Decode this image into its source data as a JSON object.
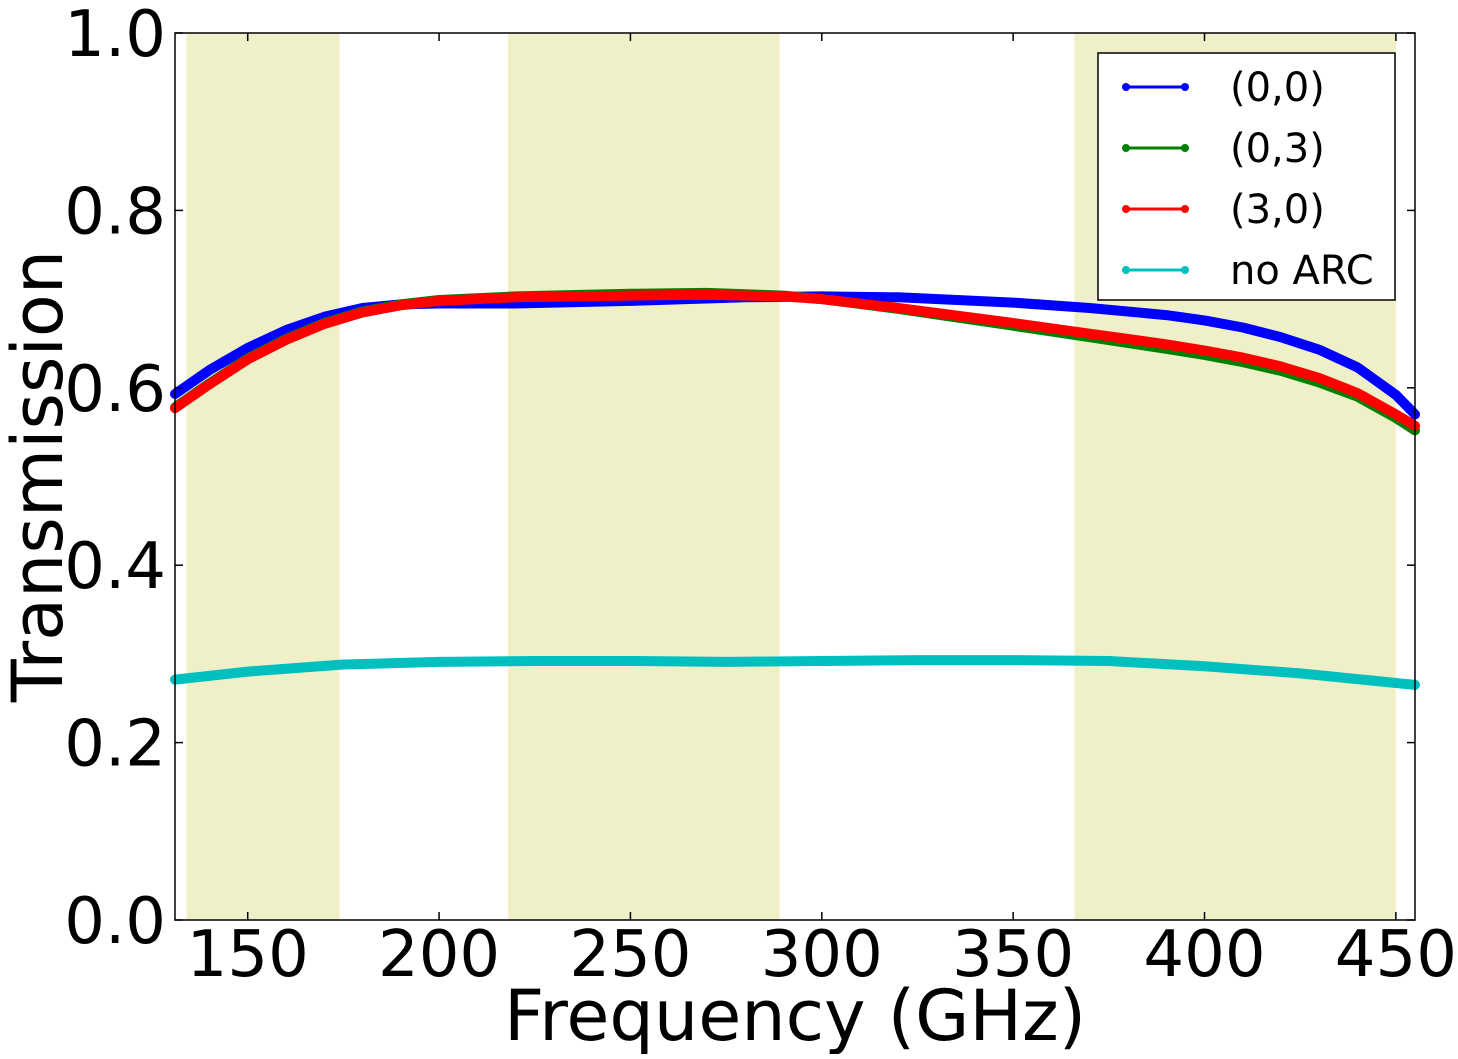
{
  "chart_data": {
    "type": "line",
    "xlabel": "Frequency (GHz)",
    "ylabel": "Transmission",
    "xlim": [
      131,
      455
    ],
    "ylim": [
      0.0,
      1.0
    ],
    "x_ticks": [
      150,
      200,
      250,
      300,
      350,
      400,
      450
    ],
    "y_ticks": [
      0.0,
      0.2,
      0.4,
      0.6,
      0.8,
      1.0
    ],
    "x_tick_labels": [
      "150",
      "200",
      "250",
      "300",
      "350",
      "400",
      "450"
    ],
    "y_tick_labels": [
      "0.0",
      "0.2",
      "0.4",
      "0.6",
      "0.8",
      "1.0"
    ],
    "grid": false,
    "legend_position": "top-right",
    "shaded_bands": [
      {
        "x_start": 134,
        "x_end": 174,
        "color": "#f0f0c8"
      },
      {
        "x_start": 218,
        "x_end": 289,
        "color": "#f0f0c8"
      },
      {
        "x_start": 366,
        "x_end": 450,
        "color": "#f0f0c8"
      }
    ],
    "series": [
      {
        "name": "(0,0)",
        "color": "#0000ff",
        "x": [
          131,
          140,
          150,
          160,
          170,
          180,
          190,
          200,
          220,
          250,
          280,
          300,
          320,
          350,
          370,
          390,
          400,
          410,
          420,
          430,
          440,
          450,
          455
        ],
        "values": [
          0.593,
          0.62,
          0.645,
          0.665,
          0.68,
          0.69,
          0.694,
          0.695,
          0.695,
          0.698,
          0.702,
          0.703,
          0.702,
          0.696,
          0.69,
          0.682,
          0.676,
          0.668,
          0.657,
          0.643,
          0.623,
          0.592,
          0.57
        ]
      },
      {
        "name": "(0,3)",
        "color": "#008000",
        "x": [
          131,
          140,
          150,
          160,
          170,
          180,
          190,
          200,
          220,
          250,
          270,
          290,
          300,
          320,
          350,
          370,
          390,
          400,
          410,
          420,
          430,
          440,
          450,
          455
        ],
        "values": [
          0.578,
          0.605,
          0.633,
          0.655,
          0.673,
          0.686,
          0.694,
          0.699,
          0.703,
          0.706,
          0.707,
          0.704,
          0.7,
          0.689,
          0.67,
          0.657,
          0.644,
          0.637,
          0.629,
          0.619,
          0.606,
          0.59,
          0.566,
          0.552
        ]
      },
      {
        "name": "(3,0)",
        "color": "#ff0000",
        "x": [
          131,
          140,
          150,
          160,
          170,
          180,
          190,
          200,
          220,
          250,
          270,
          290,
          300,
          320,
          350,
          370,
          390,
          400,
          410,
          420,
          430,
          440,
          450,
          455
        ],
        "values": [
          0.577,
          0.604,
          0.632,
          0.654,
          0.672,
          0.685,
          0.693,
          0.698,
          0.702,
          0.704,
          0.705,
          0.703,
          0.7,
          0.69,
          0.673,
          0.661,
          0.649,
          0.642,
          0.634,
          0.624,
          0.611,
          0.594,
          0.57,
          0.557
        ]
      },
      {
        "name": "no ARC",
        "color": "#00bfbf",
        "x": [
          131,
          150,
          175,
          200,
          225,
          250,
          275,
          300,
          325,
          350,
          375,
          400,
          425,
          455
        ],
        "values": [
          0.271,
          0.28,
          0.288,
          0.291,
          0.292,
          0.292,
          0.291,
          0.292,
          0.293,
          0.293,
          0.292,
          0.286,
          0.278,
          0.265
        ]
      }
    ]
  }
}
